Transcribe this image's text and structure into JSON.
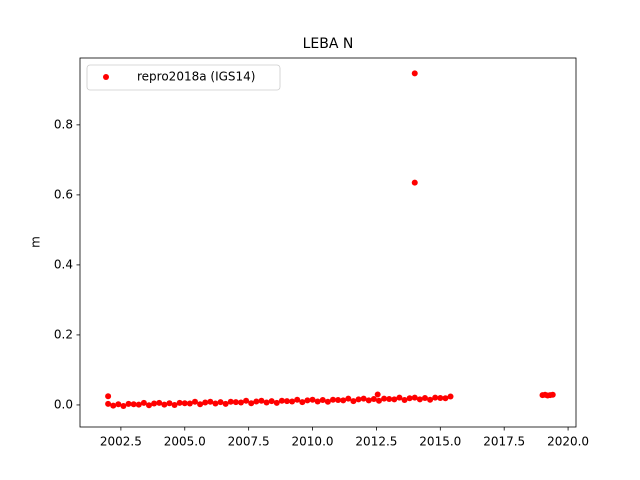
{
  "chart_data": {
    "type": "scatter",
    "title": "LEBA N",
    "ylabel": "m",
    "xlim": [
      2000.9,
      2020.31
    ],
    "ylim": [
      -0.063,
      0.991
    ],
    "xticks": [
      2002.5,
      {
        "value": 2005,
        "label": "2005.0"
      },
      2007.5,
      {
        "value": 2010,
        "label": "2010.0"
      },
      2012.5,
      {
        "value": 2015,
        "label": "2015.0"
      },
      2017.5,
      {
        "value": 2020,
        "label": "2020.0"
      }
    ],
    "yticks": [
      {
        "value": 0,
        "label": "0.0"
      },
      0.2,
      0.4,
      0.6,
      0.8
    ],
    "legend": "upper left",
    "series": [
      {
        "name": "repro2018a (IGS14)",
        "color": "#ff0000",
        "x": [
          2002,
          2002.2,
          2002.4,
          2002.6,
          2002.8,
          2003,
          2003.2,
          2003.4,
          2003.6,
          2003.8,
          2004,
          2004.2,
          2004.4,
          2004.6,
          2004.8,
          2005,
          2005.2,
          2005.4,
          2005.6,
          2005.8,
          2006,
          2006.2,
          2006.4,
          2006.6,
          2006.8,
          2007,
          2007.2,
          2007.4,
          2007.6,
          2007.8,
          2008,
          2008.2,
          2008.4,
          2008.6,
          2008.8,
          2009,
          2009.2,
          2009.4,
          2009.6,
          2009.8,
          2010,
          2010.2,
          2010.4,
          2010.6,
          2010.8,
          2011,
          2011.2,
          2011.4,
          2011.6,
          2011.8,
          2012,
          2012.2,
          2012.4,
          2012.6,
          2012.8,
          2013,
          2013.2,
          2013.4,
          2013.6,
          2013.8,
          2014,
          2014.2,
          2014.4,
          2014.6,
          2014.8,
          2015,
          2015.2,
          2015.4,
          2002,
          2012.55,
          2014,
          2014,
          2019,
          2019.1,
          2019.2,
          2019.3,
          2019.4
        ],
        "values": [
          0.003,
          -0.002,
          0.002,
          -0.003,
          0.003,
          0.002,
          0.001,
          0.006,
          -0.001,
          0.004,
          0.006,
          0.001,
          0.005,
          0,
          0.006,
          0.005,
          0.004,
          0.009,
          0.002,
          0.007,
          0.009,
          0.004,
          0.008,
          0.003,
          0.009,
          0.008,
          0.007,
          0.012,
          0.005,
          0.01,
          0.012,
          0.007,
          0.011,
          0.006,
          0.012,
          0.011,
          0.01,
          0.015,
          0.008,
          0.013,
          0.015,
          0.01,
          0.014,
          0.009,
          0.015,
          0.014,
          0.013,
          0.018,
          0.011,
          0.016,
          0.018,
          0.013,
          0.017,
          0.012,
          0.018,
          0.017,
          0.016,
          0.021,
          0.014,
          0.019,
          0.021,
          0.016,
          0.02,
          0.015,
          0.021,
          0.02,
          0.019,
          0.024,
          0.025,
          0.03,
          0.947,
          0.635,
          0.028,
          0.029,
          0.027,
          0.028,
          0.029
        ]
      }
    ]
  }
}
